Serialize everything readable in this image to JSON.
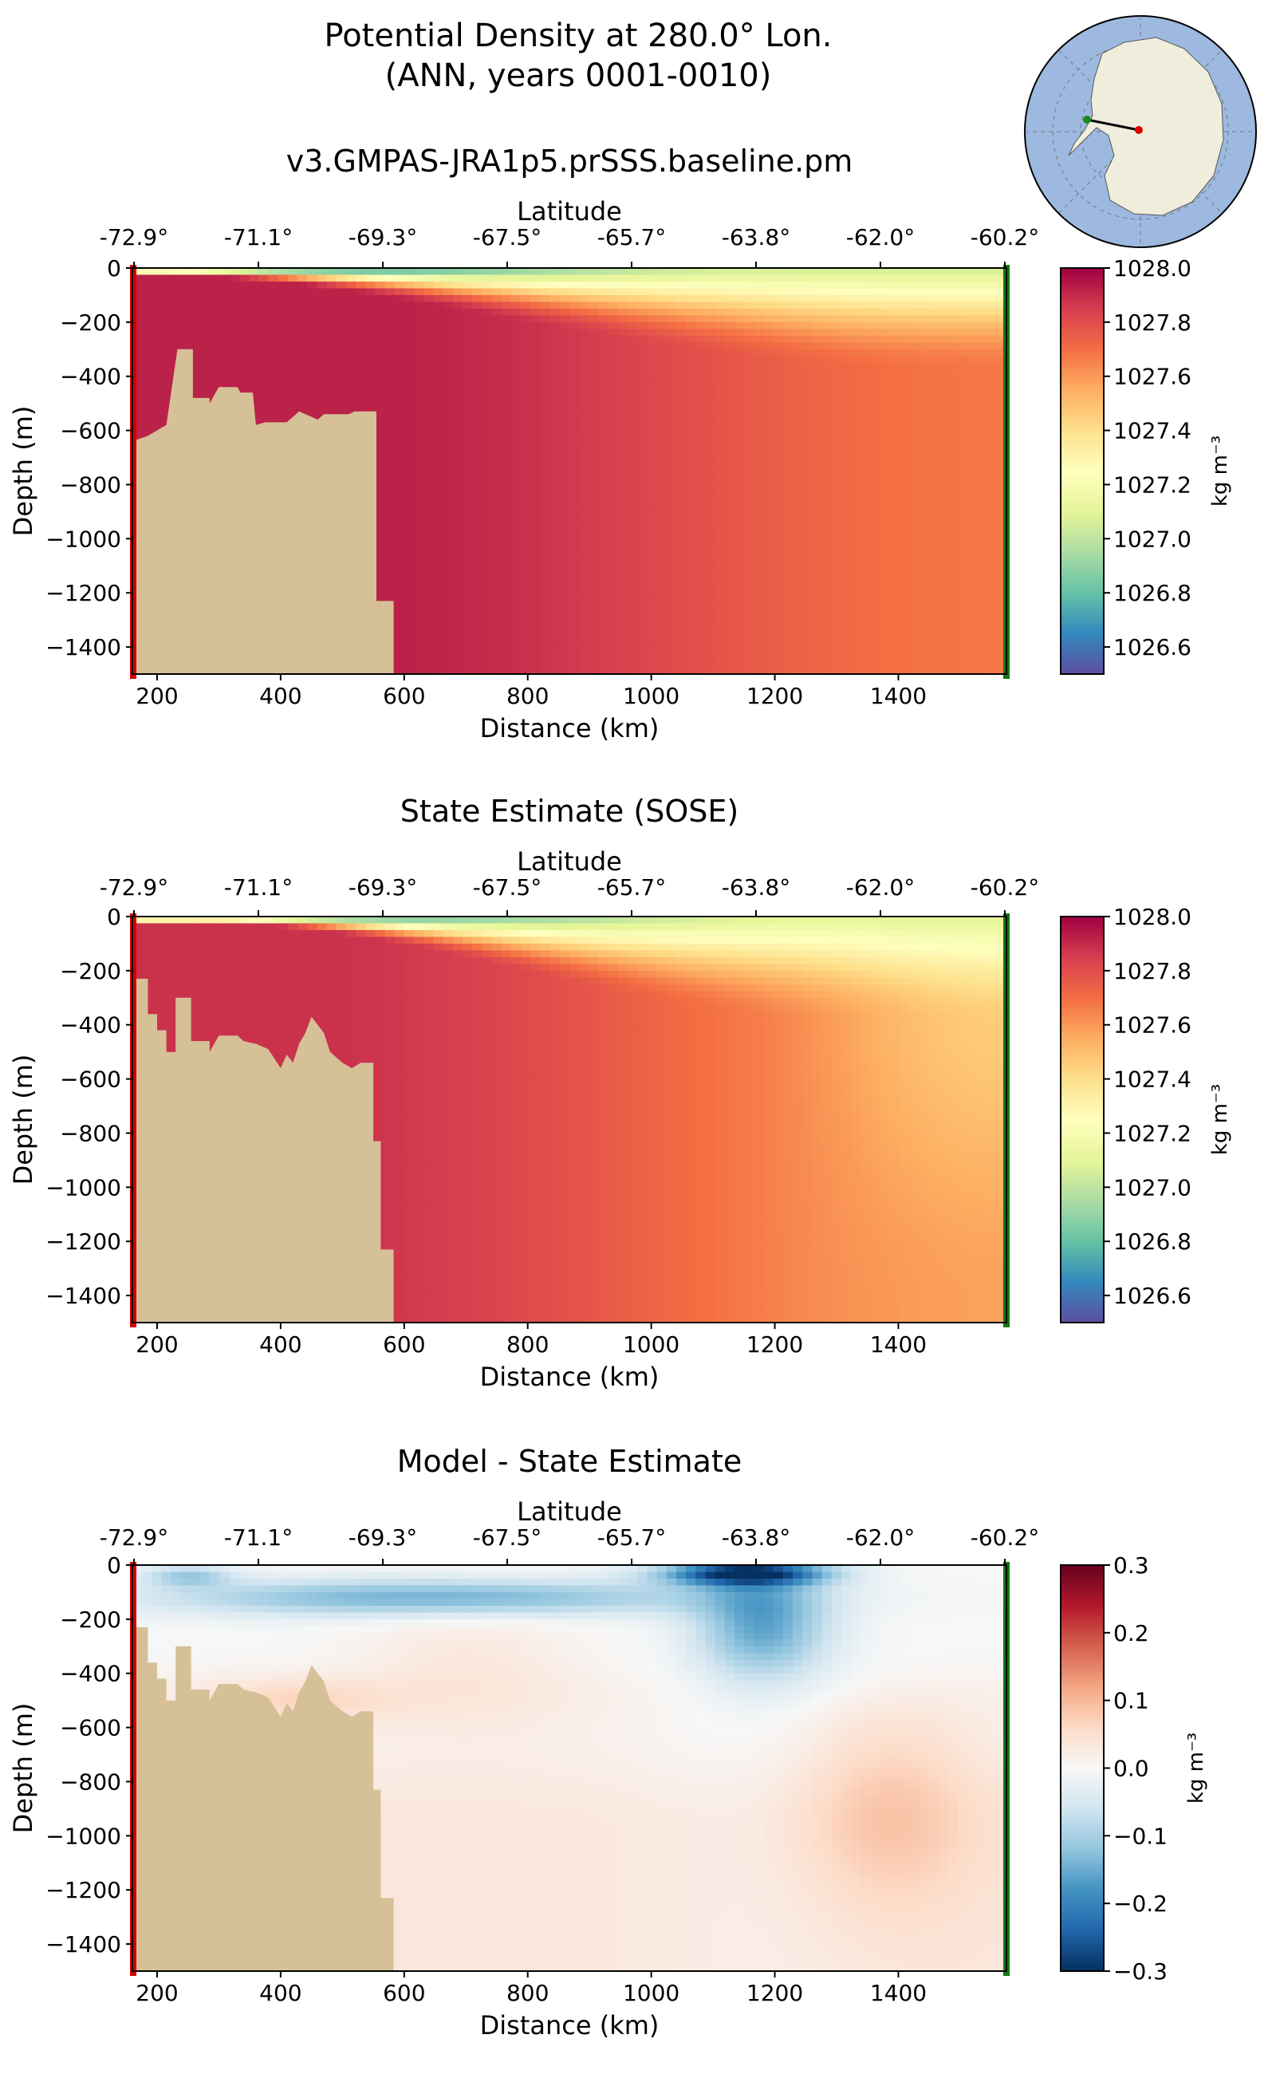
{
  "title_line1": "Potential Density at 280.0° Lon.",
  "title_line2": "(ANN, years 0001-0010)",
  "inset_map": {
    "name": "antarctica-transect-locator"
  },
  "chart_data": [
    {
      "type": "heatmap",
      "title": "v3.GMPAS-JRA1p5.prSSS.baseline.pm",
      "xlabel": "Distance (km)",
      "ylabel": "Depth (m)",
      "top_xlabel": "Latitude",
      "xlim": [
        160,
        1575
      ],
      "ylim": [
        -1500,
        0
      ],
      "xticks": [
        200,
        400,
        600,
        800,
        1000,
        1200,
        1400
      ],
      "yticks": [
        0,
        -200,
        -400,
        -600,
        -800,
        -1000,
        -1200,
        -1400
      ],
      "latitude_ticks": [
        "-72.9°",
        "-71.1°",
        "-69.3°",
        "-67.5°",
        "-65.7°",
        "-63.8°",
        "-62.0°",
        "-60.2°"
      ],
      "colorbar": {
        "label": "kg m⁻³",
        "min": 1026.5,
        "max": 1028.0,
        "ticks": [
          "1026.6",
          "1026.8",
          "1027.0",
          "1027.2",
          "1027.4",
          "1027.6",
          "1027.8",
          "1028.0"
        ],
        "colormap": "Spectral_r"
      },
      "field_pattern": {
        "surface_value": 1026.6,
        "deep_near_shelf": 1027.9,
        "deep_offshore": 1027.7
      },
      "bathymetry": [
        [
          160,
          -640
        ],
        [
          185,
          -620
        ],
        [
          215,
          -580
        ],
        [
          233,
          -300
        ],
        [
          258,
          -300
        ],
        [
          258,
          -480
        ],
        [
          285,
          -480
        ],
        [
          285,
          -500
        ],
        [
          300,
          -440
        ],
        [
          330,
          -440
        ],
        [
          335,
          -460
        ],
        [
          355,
          -460
        ],
        [
          360,
          -580
        ],
        [
          375,
          -570
        ],
        [
          410,
          -570
        ],
        [
          430,
          -530
        ],
        [
          460,
          -560
        ],
        [
          470,
          -540
        ],
        [
          510,
          -540
        ],
        [
          520,
          -530
        ],
        [
          555,
          -530
        ],
        [
          555,
          -1230
        ],
        [
          583,
          -1230
        ],
        [
          583,
          -1500
        ]
      ],
      "colors": {
        "land": "#d5c098",
        "left_marker": "#d40000",
        "right_marker": "#117711"
      }
    },
    {
      "type": "heatmap",
      "title": "State Estimate (SOSE)",
      "xlabel": "Distance (km)",
      "ylabel": "Depth (m)",
      "top_xlabel": "Latitude",
      "xlim": [
        160,
        1575
      ],
      "ylim": [
        -1500,
        0
      ],
      "xticks": [
        200,
        400,
        600,
        800,
        1000,
        1200,
        1400
      ],
      "yticks": [
        0,
        -200,
        -400,
        -600,
        -800,
        -1000,
        -1200,
        -1400
      ],
      "latitude_ticks": [
        "-72.9°",
        "-71.1°",
        "-69.3°",
        "-67.5°",
        "-65.7°",
        "-63.8°",
        "-62.0°",
        "-60.2°"
      ],
      "colorbar": {
        "label": "kg m⁻³",
        "min": 1026.5,
        "max": 1028.0,
        "ticks": [
          "1026.6",
          "1026.8",
          "1027.0",
          "1027.2",
          "1027.4",
          "1027.6",
          "1027.8",
          "1028.0"
        ],
        "colormap": "Spectral_r"
      },
      "field_pattern": {
        "surface_value": 1026.7,
        "deep_near_shelf": 1027.85,
        "deep_offshore": 1027.65
      },
      "bathymetry": [
        [
          160,
          -230
        ],
        [
          185,
          -230
        ],
        [
          185,
          -360
        ],
        [
          200,
          -360
        ],
        [
          200,
          -420
        ],
        [
          215,
          -420
        ],
        [
          215,
          -500
        ],
        [
          230,
          -500
        ],
        [
          230,
          -300
        ],
        [
          255,
          -300
        ],
        [
          255,
          -460
        ],
        [
          285,
          -460
        ],
        [
          285,
          -500
        ],
        [
          300,
          -440
        ],
        [
          330,
          -440
        ],
        [
          340,
          -460
        ],
        [
          360,
          -470
        ],
        [
          380,
          -490
        ],
        [
          400,
          -560
        ],
        [
          410,
          -510
        ],
        [
          420,
          -540
        ],
        [
          430,
          -470
        ],
        [
          440,
          -430
        ],
        [
          450,
          -370
        ],
        [
          470,
          -430
        ],
        [
          480,
          -500
        ],
        [
          500,
          -540
        ],
        [
          515,
          -560
        ],
        [
          530,
          -540
        ],
        [
          550,
          -540
        ],
        [
          550,
          -830
        ],
        [
          562,
          -830
        ],
        [
          562,
          -1230
        ],
        [
          583,
          -1230
        ],
        [
          583,
          -1500
        ]
      ],
      "colors": {
        "land": "#d5c098",
        "left_marker": "#d40000",
        "right_marker": "#117711"
      }
    },
    {
      "type": "heatmap",
      "title": "Model - State Estimate",
      "xlabel": "Distance (km)",
      "ylabel": "Depth (m)",
      "top_xlabel": "Latitude",
      "xlim": [
        160,
        1575
      ],
      "ylim": [
        -1500,
        0
      ],
      "xticks": [
        200,
        400,
        600,
        800,
        1000,
        1200,
        1400
      ],
      "yticks": [
        0,
        -200,
        -400,
        -600,
        -800,
        -1000,
        -1200,
        -1400
      ],
      "latitude_ticks": [
        "-72.9°",
        "-71.1°",
        "-69.3°",
        "-67.5°",
        "-65.7°",
        "-63.8°",
        "-62.0°",
        "-60.2°"
      ],
      "colorbar": {
        "label": "kg m⁻³",
        "min": -0.3,
        "max": 0.3,
        "ticks": [
          "−0.3",
          "−0.2",
          "−0.1",
          "0.0",
          "0.1",
          "0.2",
          "0.3"
        ],
        "colormap": "RdBu_r"
      },
      "field_pattern": {
        "min_near_surface_at_km_1150": -0.3,
        "max_offshore_at_km_1380_depth_900": 0.08
      },
      "bathymetry": [
        [
          160,
          -230
        ],
        [
          185,
          -230
        ],
        [
          185,
          -360
        ],
        [
          200,
          -360
        ],
        [
          200,
          -420
        ],
        [
          215,
          -420
        ],
        [
          215,
          -500
        ],
        [
          230,
          -500
        ],
        [
          230,
          -300
        ],
        [
          255,
          -300
        ],
        [
          255,
          -460
        ],
        [
          285,
          -460
        ],
        [
          285,
          -500
        ],
        [
          300,
          -440
        ],
        [
          330,
          -440
        ],
        [
          340,
          -460
        ],
        [
          360,
          -470
        ],
        [
          380,
          -490
        ],
        [
          400,
          -560
        ],
        [
          410,
          -510
        ],
        [
          420,
          -540
        ],
        [
          430,
          -470
        ],
        [
          440,
          -430
        ],
        [
          450,
          -370
        ],
        [
          470,
          -430
        ],
        [
          480,
          -500
        ],
        [
          500,
          -540
        ],
        [
          515,
          -560
        ],
        [
          530,
          -540
        ],
        [
          550,
          -540
        ],
        [
          550,
          -830
        ],
        [
          562,
          -830
        ],
        [
          562,
          -1230
        ],
        [
          583,
          -1230
        ],
        [
          583,
          -1500
        ]
      ],
      "colors": {
        "land": "#d5c098",
        "left_marker": "#d40000",
        "right_marker": "#117711"
      }
    }
  ]
}
